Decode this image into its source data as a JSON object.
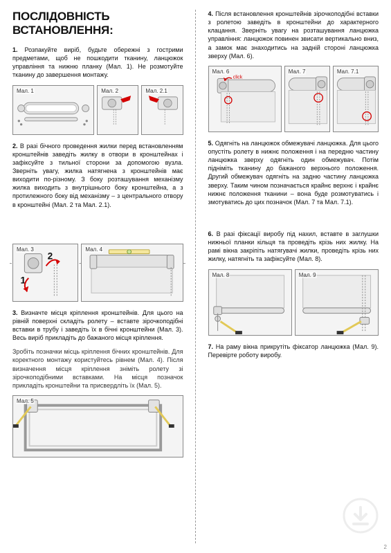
{
  "title": "ПОСЛІДОВНІСТЬ ВСТАНОВЛЕННЯ:",
  "left": {
    "p1": "1. Розпакуйте виріб, будьте обережні з гострими предметами, щоб не пошкодити тканину, ланцюжок управління та нижню планку (Мал. 1). Не розмотуйте тканину до завершення монтажу.",
    "p2": "2. В разі бічного проведення жилки перед встановленням кронштейнів заведіть жилку в отвори в кронштейнах і зафіксуйте з тильної сторони за допомогою вузла. Зверніть увагу, жилка натягнена з кронштейнів має виходити по-різному. З боку розташування механізму жилка виходить з внутрішнього боку кронштейна, а з протилежного боку від механізму – з центрального отвору в кронштейні (Мал. 2 та Мал. 2.1).",
    "p3a": "3. Визначте місця кріплення кронштейнів. Для цього на рівній поверхні складіть ролету – вставте зірочкоподібні вставки в трубу і заведіть їх в бічні кронштейни (Мал. 3). Весь виріб прикладіть до бажаного місця кріплення.",
    "p3b": "Зробіть позначки місць кріплення бічних кронштейнів. Для коректного монтажу користуйтесь рівнем (Мал. 4). Після визначення місця кріплення зніміть ролету зі зірочкоподібними вставками. На місця позначок прикладіть кронштейни та присвердліть їх (Мал. 5)."
  },
  "right": {
    "p4": "4. Після встановлення кронштейнів зірочкоподібні вставки з ролетою заведіть в кронштейни до характерного клацання. Зверніть увагу на розташування ланцюжка управління: ланцюжок повинен звисати вертикально вниз, а замок має знаходитись на задній стороні ланцюжка зверху (Мал. 6).",
    "p5": "5. Одягніть на ланцюжок обмежувачі ланцюжка. Для цього опустіть ролету в нижнє положення і на передню частину ланцюжка зверху одягніть один обмежувач. Потім підніміть тканину до бажаного верхнього положення. Другий обмежувач одягніть на задню частину ланцюжка зверху. Таким чином позначається крайнє верхнє і крайнє нижнє положення тканини – вона буде розмотуватись і змотуватись до цих позначок (Мал. 7 та Мал. 7.1).",
    "p6": "6. В разі фіксації виробу під нахил, вставте в заглушки нижньої планки кільця та проведіть крізь них жилку. На рамі вікна закріпіть натягувачі жилки, проведіть крізь них жилку, натягніть та зафіксуйте (Мал. 8).",
    "p7": "7. На раму вікна прикрутіть фіксатор ланцюжка (Мал. 9). Перевірте роботу виробу."
  },
  "figs": {
    "f1": "Мал. 1",
    "f2": "Мал. 2",
    "f21": "Мал. 2.1",
    "f3": "Мал. 3",
    "f4": "Мал. 4",
    "f5": "Мал. 5",
    "f6": "Мал. 6",
    "f7": "Мал. 7",
    "f71": "Мал. 7.1",
    "f8": "Мал. 8",
    "f9": "Мал. 9"
  },
  "click_label": "click",
  "pagenum": "2",
  "colors": {
    "accent": "#d40000",
    "gray_light": "#e3e3e3",
    "gray_mid": "#bdbdbd",
    "gray_dark": "#8a8a8a",
    "stroke": "#555"
  }
}
